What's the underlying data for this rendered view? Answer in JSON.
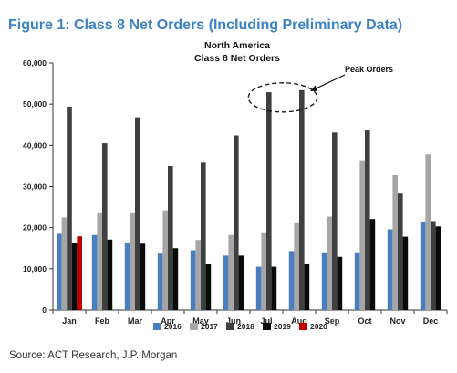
{
  "figure_title": "Figure 1: Class 8 Net Orders (Including Preliminary Data)",
  "source": "Source: ACT Research, J.P. Morgan",
  "chart_data": {
    "type": "bar",
    "title_lines": [
      "North America",
      "Class 8 Net Orders"
    ],
    "categories": [
      "Jan",
      "Feb",
      "Mar",
      "Apr",
      "May",
      "Jun",
      "Jul",
      "Aug",
      "Sep",
      "Oct",
      "Nov",
      "Dec"
    ],
    "y_ticks": [
      "0",
      "10,000",
      "20,000",
      "30,000",
      "40,000",
      "50,000",
      "60,000"
    ],
    "ylim": [
      0,
      60000
    ],
    "grid": false,
    "legend_position": "bottom",
    "series": [
      {
        "name": "2016",
        "color": "#4a7ebf",
        "values": [
          18500,
          18200,
          16400,
          13900,
          14500,
          13200,
          10500,
          14300,
          14000,
          14000,
          19600,
          21500
        ]
      },
      {
        "name": "2017",
        "color": "#a6a6a6",
        "values": [
          22500,
          23500,
          23500,
          24200,
          17000,
          18200,
          18900,
          21300,
          22700,
          36400,
          32800,
          37800
        ]
      },
      {
        "name": "2018",
        "color": "#3f3f3f",
        "values": [
          49400,
          40500,
          46800,
          35000,
          35800,
          42400,
          52900,
          53400,
          43100,
          43600,
          28300,
          21600
        ]
      },
      {
        "name": "2019",
        "color": "#0a0a0a",
        "values": [
          16300,
          17100,
          16100,
          15000,
          11100,
          13200,
          10500,
          11300,
          12900,
          22100,
          17800,
          20300
        ]
      },
      {
        "name": "2020",
        "color": "#c00000",
        "values": [
          17900,
          null,
          null,
          null,
          null,
          null,
          null,
          null,
          null,
          null,
          null,
          null
        ]
      }
    ],
    "annotation": {
      "label": "Peak Orders"
    }
  }
}
